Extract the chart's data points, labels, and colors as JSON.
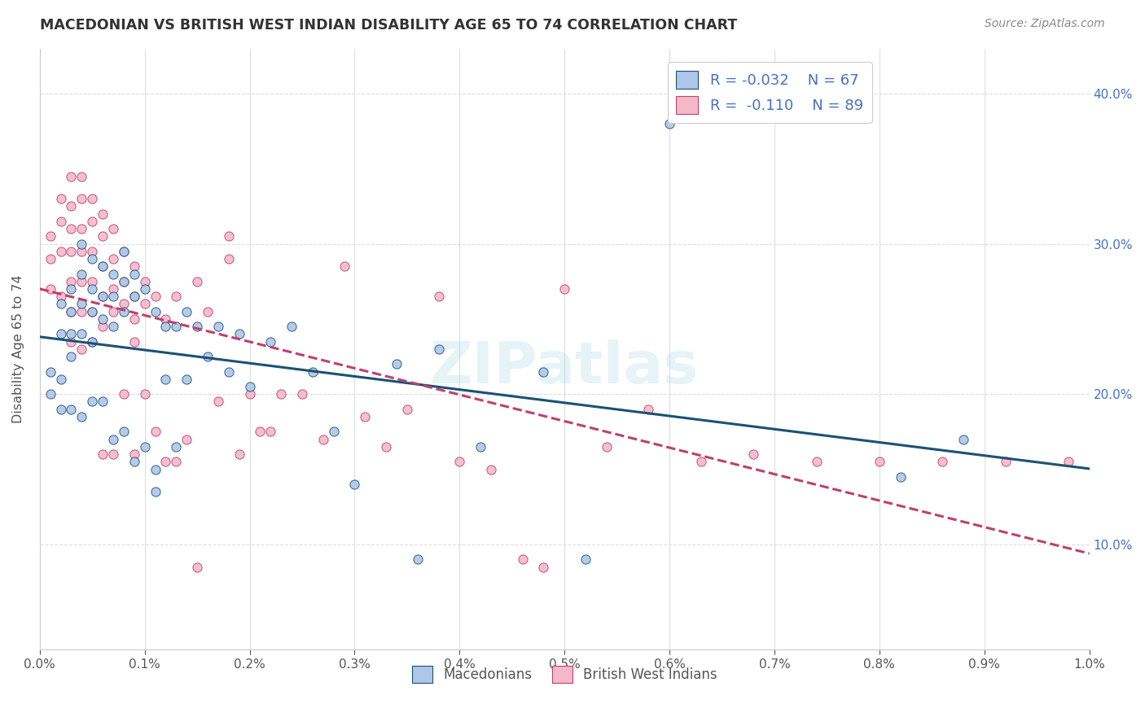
{
  "title": "MACEDONIAN VS BRITISH WEST INDIAN DISABILITY AGE 65 TO 74 CORRELATION CHART",
  "source": "Source: ZipAtlas.com",
  "ylabel": "Disability Age 65 to 74",
  "xlim": [
    0.0,
    0.01
  ],
  "ylim": [
    0.03,
    0.43
  ],
  "xticks": [
    0.0,
    0.001,
    0.002,
    0.003,
    0.004,
    0.005,
    0.006,
    0.007,
    0.008,
    0.009,
    0.01
  ],
  "yticks": [
    0.1,
    0.2,
    0.3,
    0.4
  ],
  "macedonian_color": "#aec6e8",
  "bwi_color": "#f4b8cb",
  "macedonian_R": -0.032,
  "macedonian_N": 67,
  "bwi_R": -0.11,
  "bwi_N": 89,
  "line_macedonian_color": "#1a5276",
  "line_bwi_color": "#c0406a",
  "macedonian_x": [
    0.0001,
    0.0001,
    0.0002,
    0.0002,
    0.0002,
    0.0002,
    0.0003,
    0.0003,
    0.0003,
    0.0003,
    0.0003,
    0.0004,
    0.0004,
    0.0004,
    0.0004,
    0.0004,
    0.0005,
    0.0005,
    0.0005,
    0.0005,
    0.0005,
    0.0006,
    0.0006,
    0.0006,
    0.0006,
    0.0007,
    0.0007,
    0.0007,
    0.0007,
    0.0008,
    0.0008,
    0.0008,
    0.0008,
    0.0009,
    0.0009,
    0.0009,
    0.001,
    0.001,
    0.0011,
    0.0011,
    0.0011,
    0.0012,
    0.0012,
    0.0013,
    0.0013,
    0.0014,
    0.0014,
    0.0015,
    0.0016,
    0.0017,
    0.0018,
    0.0019,
    0.002,
    0.0022,
    0.0024,
    0.0026,
    0.0028,
    0.003,
    0.0034,
    0.0036,
    0.0038,
    0.0042,
    0.0048,
    0.0052,
    0.006,
    0.0082,
    0.0088
  ],
  "macedonian_y": [
    0.215,
    0.2,
    0.26,
    0.24,
    0.21,
    0.19,
    0.27,
    0.255,
    0.24,
    0.225,
    0.19,
    0.3,
    0.28,
    0.26,
    0.24,
    0.185,
    0.29,
    0.27,
    0.255,
    0.235,
    0.195,
    0.285,
    0.265,
    0.25,
    0.195,
    0.28,
    0.265,
    0.245,
    0.17,
    0.295,
    0.275,
    0.255,
    0.175,
    0.28,
    0.265,
    0.155,
    0.27,
    0.165,
    0.255,
    0.135,
    0.15,
    0.245,
    0.21,
    0.245,
    0.165,
    0.255,
    0.21,
    0.245,
    0.225,
    0.245,
    0.215,
    0.24,
    0.205,
    0.235,
    0.245,
    0.215,
    0.175,
    0.14,
    0.22,
    0.09,
    0.23,
    0.165,
    0.215,
    0.09,
    0.38,
    0.145,
    0.17
  ],
  "bwi_x": [
    0.0001,
    0.0001,
    0.0001,
    0.0002,
    0.0002,
    0.0002,
    0.0002,
    0.0003,
    0.0003,
    0.0003,
    0.0003,
    0.0003,
    0.0003,
    0.0003,
    0.0004,
    0.0004,
    0.0004,
    0.0004,
    0.0004,
    0.0004,
    0.0004,
    0.0005,
    0.0005,
    0.0005,
    0.0005,
    0.0005,
    0.0005,
    0.0006,
    0.0006,
    0.0006,
    0.0006,
    0.0006,
    0.0006,
    0.0007,
    0.0007,
    0.0007,
    0.0007,
    0.0007,
    0.0008,
    0.0008,
    0.0008,
    0.0008,
    0.0009,
    0.0009,
    0.0009,
    0.0009,
    0.0009,
    0.001,
    0.001,
    0.001,
    0.0011,
    0.0011,
    0.0012,
    0.0012,
    0.0013,
    0.0013,
    0.0014,
    0.0015,
    0.0015,
    0.0016,
    0.0017,
    0.0018,
    0.0018,
    0.0019,
    0.002,
    0.0021,
    0.0022,
    0.0023,
    0.0025,
    0.0027,
    0.0029,
    0.0031,
    0.0033,
    0.0035,
    0.0038,
    0.004,
    0.0043,
    0.0046,
    0.005,
    0.0054,
    0.0058,
    0.0063,
    0.0068,
    0.0074,
    0.008,
    0.0086,
    0.0092,
    0.0098,
    0.0048
  ],
  "bwi_y": [
    0.305,
    0.29,
    0.27,
    0.33,
    0.315,
    0.295,
    0.265,
    0.345,
    0.325,
    0.31,
    0.295,
    0.275,
    0.255,
    0.235,
    0.345,
    0.33,
    0.31,
    0.295,
    0.275,
    0.255,
    0.23,
    0.33,
    0.315,
    0.295,
    0.275,
    0.255,
    0.235,
    0.32,
    0.305,
    0.285,
    0.265,
    0.245,
    0.16,
    0.31,
    0.29,
    0.27,
    0.255,
    0.16,
    0.295,
    0.275,
    0.26,
    0.2,
    0.285,
    0.265,
    0.25,
    0.235,
    0.16,
    0.275,
    0.26,
    0.2,
    0.265,
    0.175,
    0.25,
    0.155,
    0.265,
    0.155,
    0.17,
    0.275,
    0.085,
    0.255,
    0.195,
    0.305,
    0.29,
    0.16,
    0.2,
    0.175,
    0.175,
    0.2,
    0.2,
    0.17,
    0.285,
    0.185,
    0.165,
    0.19,
    0.265,
    0.155,
    0.15,
    0.09,
    0.27,
    0.165,
    0.19,
    0.155,
    0.16,
    0.155,
    0.155,
    0.155,
    0.155,
    0.155,
    0.085
  ],
  "background_color": "#ffffff",
  "grid_color": "#dddddd",
  "watermark": "ZIPatlas"
}
